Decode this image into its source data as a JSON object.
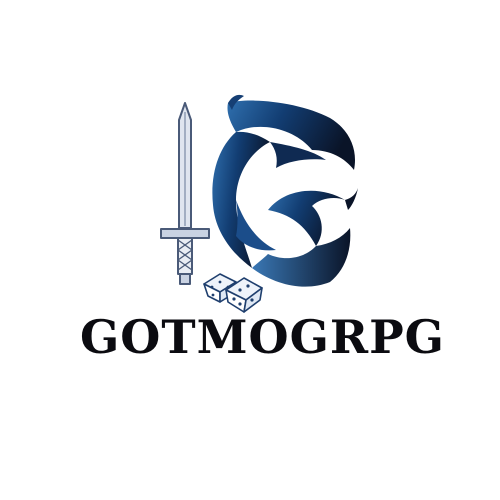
{
  "brand": {
    "name": "GOTMOGRPG",
    "colors": {
      "sword_stroke": "#4a5a78",
      "sword_fill": "#dfe5ef",
      "emblem_dark": "#0a1428",
      "emblem_mid": "#123d72",
      "emblem_light": "#3a78b5",
      "dice_stroke": "#1f3f6e",
      "wordmark": "#0b0b10",
      "background": "#ffffff"
    },
    "icons": [
      "sword-icon",
      "g-emblem-icon",
      "dice-icon"
    ]
  }
}
